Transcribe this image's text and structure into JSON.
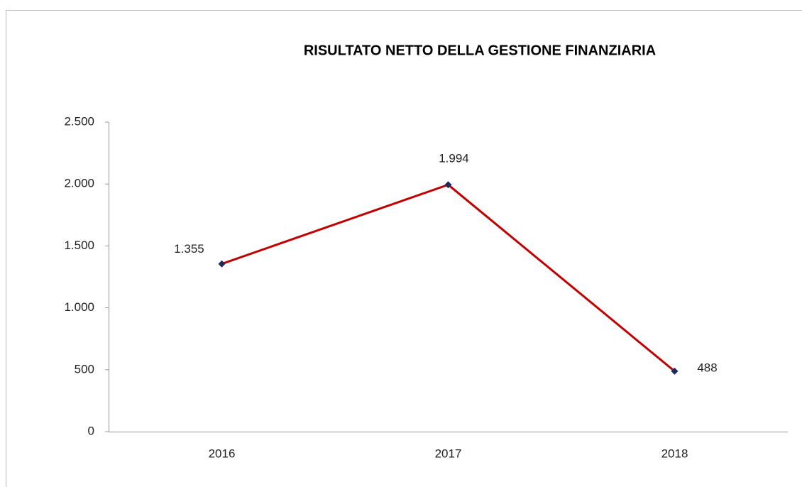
{
  "chart_data": {
    "type": "line",
    "title": "RISULTATO NETTO DELLA GESTIONE FINANZIARIA",
    "categories": [
      "2016",
      "2017",
      "2018"
    ],
    "values": [
      1355,
      1994,
      488
    ],
    "value_labels": [
      "1.355",
      "1.994",
      "488"
    ],
    "color": "#c00000",
    "marker_color": "#1f2a5c",
    "ylim": [
      0,
      2500
    ],
    "yticks": [
      0,
      500,
      {
        "value": 1000,
        "label": "1.000"
      },
      {
        "value": 1500,
        "label": "1.500"
      },
      {
        "value": 2000,
        "label": "2.000"
      },
      {
        "value": 2500,
        "label": "2.500"
      }
    ],
    "grid": false
  }
}
